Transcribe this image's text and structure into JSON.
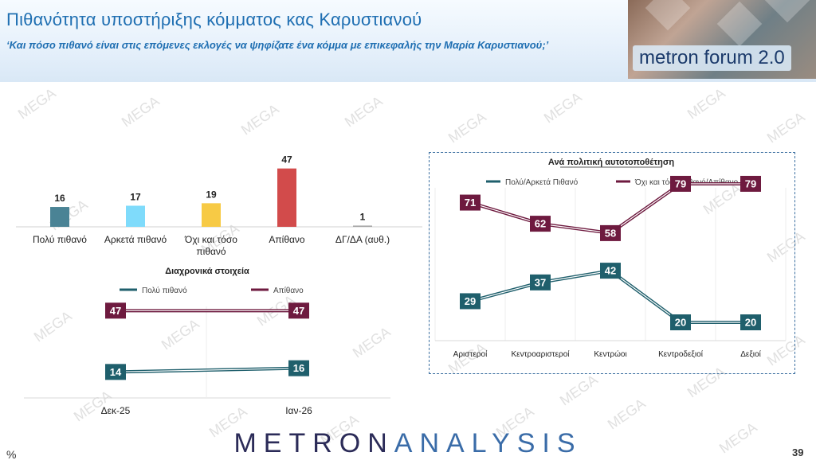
{
  "header": {
    "title": "Πιθανότητα υποστήριξης κόμματος κας Καρυστιανού",
    "subtitle": "‘Και πόσο πιθανό είναι στις επόμενες εκλογές να ψηφίζατε ένα κόμμα με επικεφαλής την Μαρία Καρυστιανού;’",
    "logo_text": "metron forum 2.0"
  },
  "watermark_text": "MEGA",
  "footer": {
    "logo_part1": "METRON",
    "logo_part2": "ANALYSIS",
    "percent_sign": "%",
    "page_number": "39"
  },
  "chart_data": [
    {
      "type": "bar",
      "title": "",
      "categories": [
        "Πολύ πιθανό",
        "Αρκετά πιθανό",
        "Όχι και τόσο πιθανό",
        "Απίθανο",
        "ΔΓ/ΔΑ (αυθ.)"
      ],
      "values": [
        16,
        17,
        19,
        47,
        1
      ],
      "colors": [
        "#4a8395",
        "#7fdbfb",
        "#f7ca45",
        "#d24b4b",
        "#a6a6a6"
      ],
      "ylim": [
        0,
        50
      ]
    },
    {
      "type": "line",
      "title": "Διαχρονικά στοιχεία",
      "categories": [
        "Δεκ-25",
        "Ιαν-26"
      ],
      "series": [
        {
          "name": "Πολύ πιθανό",
          "values": [
            14,
            16
          ],
          "color": "#1f5f6c"
        },
        {
          "name": "Απίθανο",
          "values": [
            47,
            47
          ],
          "color": "#6e1a3f"
        }
      ],
      "ylim": [
        0,
        60
      ]
    },
    {
      "type": "line",
      "title": "Ανά πολιτική αυτοτοποθέτηση",
      "categories": [
        "Αριστεροί",
        "Κεντροαριστεροί",
        "Κεντρώοι",
        "Κεντροδεξιοί",
        "Δεξιοί"
      ],
      "series": [
        {
          "name": "Πολύ/Αρκετά Πιθανό",
          "values": [
            29,
            37,
            42,
            20,
            20
          ],
          "color": "#1f5f6c"
        },
        {
          "name": "Όχι και τόσο πιθανό/Απίθανο",
          "values": [
            71,
            62,
            58,
            79,
            79
          ],
          "color": "#6e1a3f"
        }
      ],
      "ylim": [
        0,
        100
      ]
    }
  ]
}
